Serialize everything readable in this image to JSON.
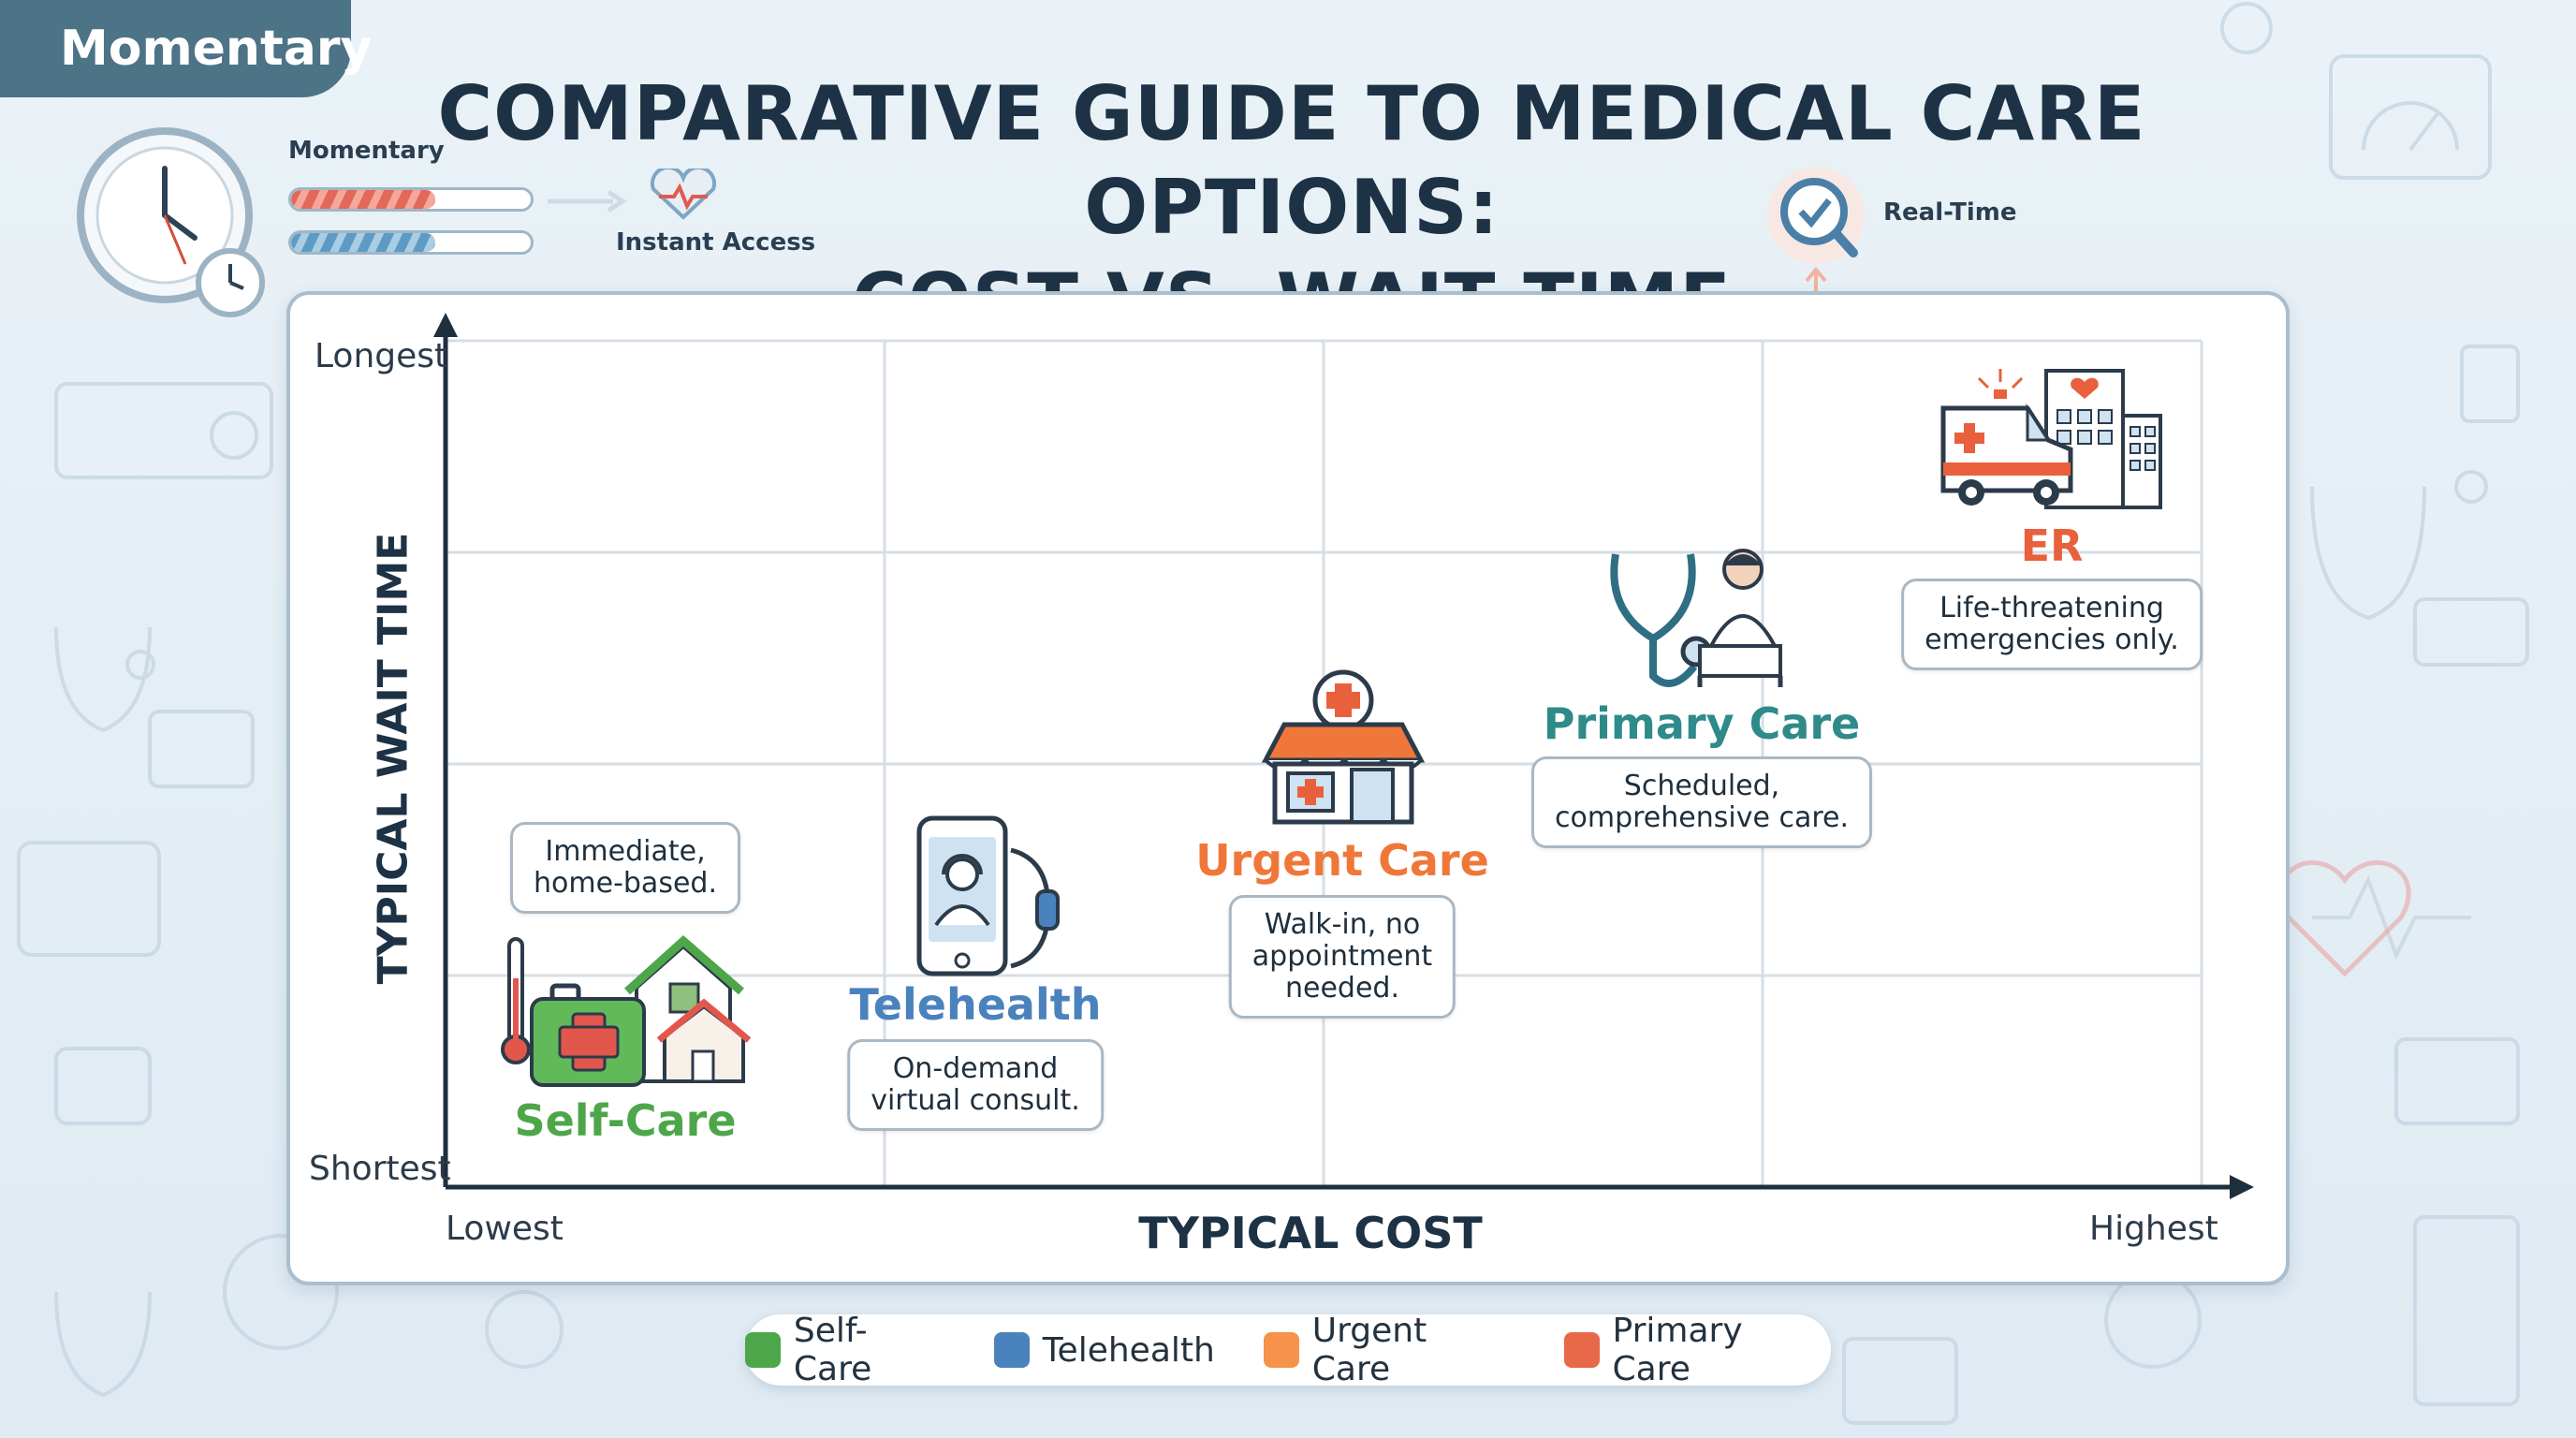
{
  "tag": "Momentary",
  "title_line1": "COMPARATIVE GUIDE TO MEDICAL CARE OPTIONS:",
  "title_line2": "COST VS. WAIT TIME",
  "header_icons": {
    "momentary_label": "Momentary",
    "instant_access_label": "Instant Access",
    "real_time_label": "Real-Time"
  },
  "colors": {
    "self_care": "#4ea64a",
    "telehealth": "#4a82bd",
    "urgent_care": "#f0773a",
    "primary_care": "#2f8a8a",
    "er": "#e8603c",
    "legend_primary": "#e8684a"
  },
  "chart_data": {
    "type": "scatter",
    "title": "",
    "xlabel": "TYPICAL COST",
    "ylabel": "TYPICAL WAIT TIME",
    "x_tick_low": "Lowest",
    "x_tick_high": "Highest",
    "y_tick_low": "Shortest",
    "y_tick_high": "Longest",
    "xlim": [
      0,
      4
    ],
    "ylim": [
      0,
      4
    ],
    "grid": true,
    "legend_position": "bottom",
    "points": [
      {
        "label": "Self-Care",
        "x": 0.4,
        "y": 0.6,
        "note_lines": [
          "Immediate,",
          "home-based."
        ],
        "color": "#4ea64a"
      },
      {
        "label": "Telehealth",
        "x": 1.2,
        "y": 0.9,
        "note_lines": [
          "On-demand",
          "virtual consult."
        ],
        "color": "#4a82bd"
      },
      {
        "label": "Urgent Care",
        "x": 2.03,
        "y": 1.65,
        "note_lines": [
          "Walk-in, no",
          "appointment",
          "needed."
        ],
        "color": "#f0773a"
      },
      {
        "label": "Primary Care",
        "x": 2.88,
        "y": 2.35,
        "note_lines": [
          "Scheduled,",
          "comprehensive care."
        ],
        "color": "#2f8a8a"
      },
      {
        "label": "ER",
        "x": 3.7,
        "y": 3.1,
        "note_lines": [
          "Life-threatening",
          "emergencies only."
        ],
        "color": "#e8603c"
      }
    ],
    "legend": [
      {
        "name": "Self-Care",
        "color": "#4ea64a"
      },
      {
        "name": "Telehealth",
        "color": "#4a82bd"
      },
      {
        "name": "Urgent Care",
        "color": "#f0773a"
      },
      {
        "name": "Primary Care",
        "color": "#e8684a"
      }
    ]
  }
}
